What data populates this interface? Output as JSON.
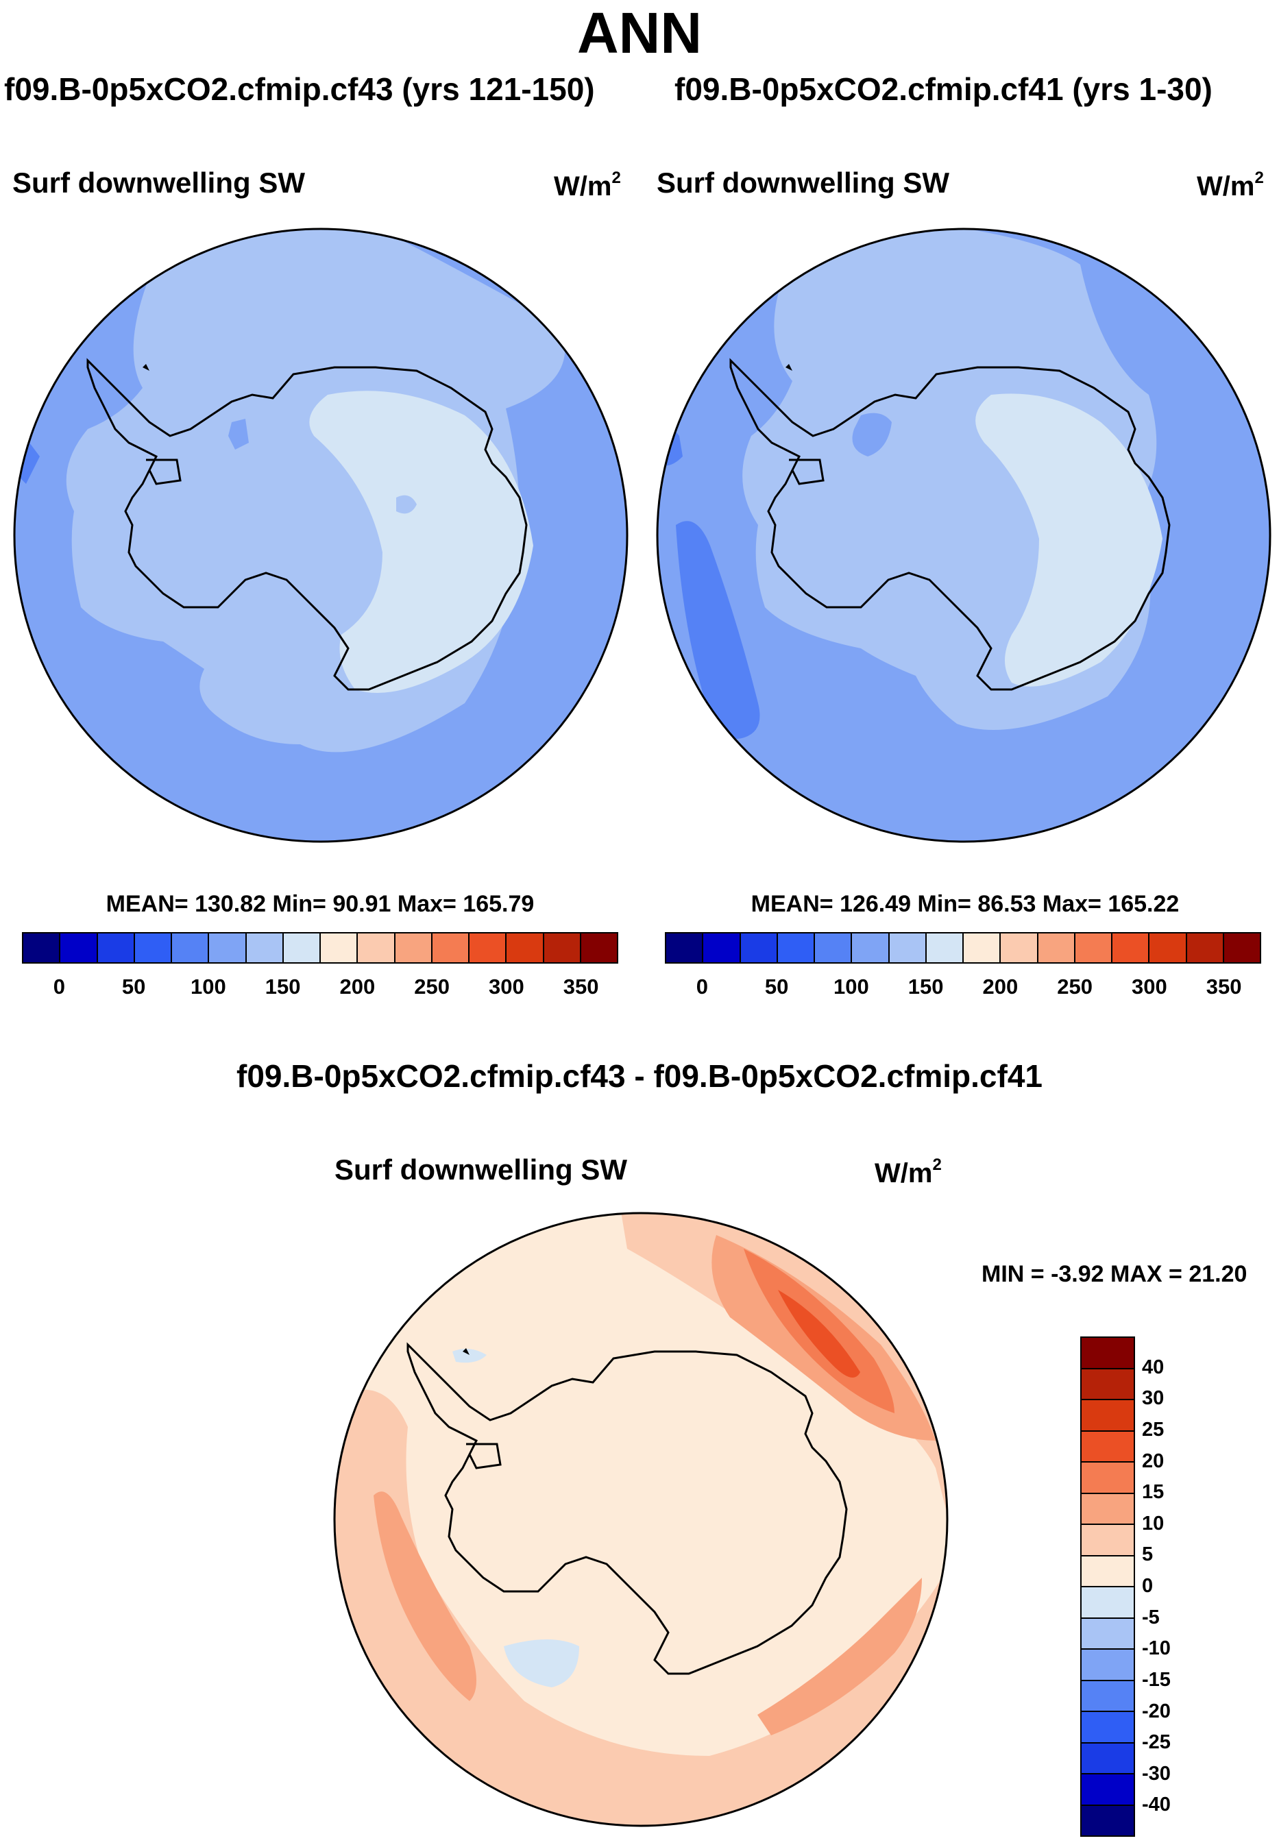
{
  "page": {
    "title": "ANN",
    "left_title": "f09.B-0p5xCO2.cfmip.cf43 (yrs 121-150)",
    "right_title": "f09.B-0p5xCO2.cfmip.cf41 (yrs 1-30)",
    "diff_title": "f09.B-0p5xCO2.cfmip.cf43 - f09.B-0p5xCO2.cfmip.cf41"
  },
  "panels": {
    "left": {
      "variable": "Surf downwelling SW",
      "units_base": "W/m",
      "units_exp": "2",
      "stats": "MEAN= 130.82  Min=  90.91  Max= 165.79"
    },
    "right": {
      "variable": "Surf downwelling SW",
      "units_base": "W/m",
      "units_exp": "2",
      "stats": "MEAN= 126.49  Min=  86.53  Max= 165.22"
    },
    "diff": {
      "variable": "Surf downwelling SW",
      "units_base": "W/m",
      "units_exp": "2",
      "stats": "MIN =  -3.92 MAX =  21.20"
    }
  },
  "colorbar_abs": {
    "colors": [
      "#00007f",
      "#0000c8",
      "#1a3ce6",
      "#2f5ef5",
      "#5582f5",
      "#7fa4f5",
      "#a9c4f5",
      "#d4e5f5",
      "#fdebd9",
      "#fbcbb0",
      "#f8a47f",
      "#f47c52",
      "#eb5025",
      "#d93a10",
      "#b52208",
      "#830000"
    ],
    "labels": [
      "0",
      "50",
      "100",
      "150",
      "200",
      "250",
      "300",
      "350"
    ]
  },
  "colorbar_diff": {
    "colors": [
      "#830000",
      "#b52208",
      "#d93a10",
      "#eb5025",
      "#f47c52",
      "#f8a47f",
      "#fbcbb0",
      "#fdebd9",
      "#d4e5f5",
      "#a9c4f5",
      "#7fa4f5",
      "#5582f5",
      "#2f5ef5",
      "#1a3ce6",
      "#0000c8",
      "#00007f"
    ],
    "labels": [
      "40",
      "30",
      "25",
      "20",
      "15",
      "10",
      "5",
      "0",
      "-5",
      "-10",
      "-15",
      "-20",
      "-25",
      "-30",
      "-40"
    ]
  }
}
